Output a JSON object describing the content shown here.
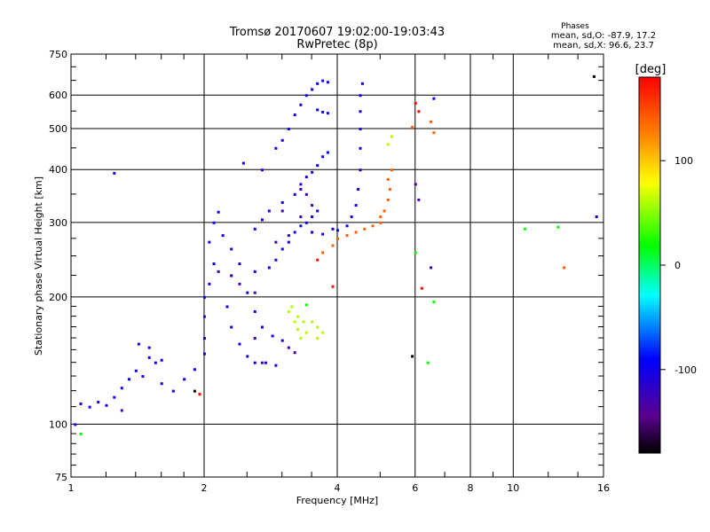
{
  "chart_data": {
    "type": "scatter",
    "title": "Tromsø 20170607 19:02:00-19:03:43",
    "subtitle": "RwPretec (8p)",
    "xlabel": "Frequency [MHz]",
    "ylabel": "Stationary phase Virtual Height [km]",
    "x_scale": "log",
    "y_scale": "log",
    "xlim": [
      1,
      16
    ],
    "ylim": [
      75,
      750
    ],
    "x_ticks": [
      1,
      2,
      4,
      6,
      8,
      10,
      16
    ],
    "x_tick_labels": [
      "1",
      "2",
      "4",
      "6",
      "8",
      "10",
      "16"
    ],
    "y_ticks": [
      75,
      100,
      200,
      300,
      400,
      500,
      600,
      750
    ],
    "y_tick_labels": [
      "75",
      "100",
      "200",
      "300",
      "400",
      "500",
      "600",
      "750"
    ],
    "grid": true,
    "stats": {
      "heading": "Phases",
      "line1": "mean, sd,O: -87.9, 17.2",
      "line2": "mean, sd,X:  96.6, 23.7"
    },
    "colorbar": {
      "label": "[deg]",
      "range": [
        -180,
        180
      ],
      "ticks": [
        100,
        0,
        -100
      ],
      "tick_labels": [
        "100",
        "0",
        "-100"
      ],
      "colormap": "rainbow"
    },
    "series": [
      {
        "color_phase": -100,
        "points": [
          [
            1.02,
            100
          ],
          [
            1.05,
            112
          ],
          [
            1.1,
            110
          ],
          [
            1.15,
            113
          ],
          [
            1.2,
            111
          ],
          [
            1.25,
            116
          ],
          [
            1.3,
            122
          ],
          [
            1.35,
            128
          ],
          [
            1.4,
            134
          ],
          [
            1.45,
            130
          ],
          [
            1.5,
            144
          ],
          [
            1.55,
            140
          ],
          [
            1.6,
            142
          ],
          [
            1.42,
            155
          ],
          [
            1.5,
            152
          ],
          [
            1.6,
            125
          ],
          [
            1.7,
            120
          ],
          [
            1.8,
            128
          ],
          [
            1.9,
            135
          ],
          [
            2.0,
            147
          ],
          [
            2.0,
            160
          ],
          [
            2.0,
            180
          ],
          [
            2.0,
            200
          ],
          [
            2.05,
            215
          ],
          [
            2.1,
            240
          ],
          [
            2.05,
            270
          ],
          [
            2.1,
            300
          ],
          [
            2.15,
            318
          ],
          [
            2.2,
            280
          ],
          [
            2.3,
            260
          ],
          [
            2.25,
            190
          ],
          [
            2.3,
            170
          ],
          [
            2.4,
            155
          ],
          [
            2.5,
            145
          ],
          [
            2.6,
            140
          ],
          [
            2.75,
            140
          ],
          [
            2.9,
            138
          ],
          [
            2.3,
            225
          ],
          [
            2.5,
            205
          ],
          [
            2.6,
            185
          ],
          [
            2.7,
            170
          ],
          [
            2.85,
            162
          ],
          [
            3.0,
            158
          ],
          [
            2.4,
            240
          ],
          [
            2.6,
            230
          ],
          [
            2.8,
            235
          ],
          [
            2.9,
            245
          ],
          [
            3.0,
            260
          ],
          [
            3.1,
            270
          ],
          [
            3.2,
            285
          ],
          [
            3.3,
            295
          ],
          [
            3.4,
            300
          ],
          [
            3.5,
            310
          ],
          [
            3.6,
            320
          ],
          [
            2.6,
            290
          ],
          [
            2.7,
            305
          ],
          [
            2.8,
            320
          ],
          [
            3.0,
            335
          ],
          [
            3.2,
            350
          ],
          [
            3.3,
            370
          ],
          [
            3.4,
            385
          ],
          [
            3.5,
            395
          ],
          [
            3.6,
            410
          ],
          [
            3.7,
            430
          ],
          [
            3.8,
            440
          ],
          [
            2.7,
            400
          ],
          [
            2.9,
            450
          ],
          [
            3.0,
            470
          ],
          [
            3.1,
            500
          ],
          [
            3.2,
            540
          ],
          [
            3.3,
            570
          ],
          [
            3.4,
            600
          ],
          [
            3.5,
            620
          ],
          [
            3.6,
            640
          ],
          [
            3.7,
            650
          ],
          [
            3.8,
            645
          ],
          [
            3.6,
            555
          ],
          [
            3.7,
            548
          ],
          [
            3.8,
            545
          ],
          [
            3.5,
            285
          ],
          [
            3.7,
            282
          ],
          [
            3.9,
            290
          ],
          [
            4.0,
            288
          ],
          [
            4.2,
            295
          ],
          [
            4.3,
            310
          ],
          [
            4.4,
            330
          ],
          [
            4.45,
            360
          ],
          [
            4.5,
            400
          ],
          [
            4.5,
            450
          ],
          [
            4.5,
            500
          ],
          [
            4.5,
            550
          ],
          [
            4.5,
            600
          ],
          [
            4.55,
            640
          ],
          [
            6.6,
            590
          ],
          [
            15.4,
            310
          ],
          [
            1.25,
            393
          ],
          [
            2.45,
            415
          ]
        ]
      },
      {
        "color_phase": -130,
        "points": [
          [
            2.15,
            230
          ],
          [
            2.4,
            215
          ],
          [
            2.6,
            205
          ],
          [
            2.9,
            270
          ],
          [
            3.1,
            280
          ],
          [
            3.3,
            310
          ],
          [
            3.5,
            330
          ],
          [
            3.4,
            350
          ],
          [
            3.3,
            360
          ],
          [
            3.0,
            320
          ],
          [
            2.7,
            140
          ],
          [
            3.1,
            152
          ],
          [
            3.2,
            148
          ],
          [
            1.3,
            108
          ],
          [
            2.6,
            160
          ],
          [
            6.5,
            235
          ],
          [
            6.0,
            370
          ],
          [
            6.1,
            340
          ],
          [
            2.3,
            225
          ]
        ]
      },
      {
        "color_phase": -180,
        "points": [
          [
            5.9,
            145
          ],
          [
            15.2,
            665
          ],
          [
            1.9,
            120
          ]
        ]
      },
      {
        "color_phase": 60,
        "points": [
          [
            3.1,
            185
          ],
          [
            3.2,
            175
          ],
          [
            3.25,
            168
          ],
          [
            3.3,
            160
          ],
          [
            3.35,
            175
          ],
          [
            3.4,
            165
          ],
          [
            3.5,
            175
          ],
          [
            3.6,
            170
          ],
          [
            3.7,
            165
          ],
          [
            3.6,
            160
          ],
          [
            3.15,
            190
          ],
          [
            3.25,
            180
          ],
          [
            5.2,
            460
          ],
          [
            5.3,
            480
          ]
        ]
      },
      {
        "color_phase": 140,
        "points": [
          [
            3.7,
            255
          ],
          [
            3.9,
            265
          ],
          [
            4.0,
            275
          ],
          [
            4.2,
            280
          ],
          [
            4.4,
            285
          ],
          [
            4.6,
            290
          ],
          [
            4.8,
            295
          ],
          [
            5.0,
            300
          ],
          [
            5.1,
            320
          ],
          [
            5.2,
            340
          ],
          [
            5.25,
            360
          ],
          [
            5.2,
            380
          ],
          [
            5.3,
            400
          ],
          [
            5.0,
            310
          ],
          [
            6.5,
            520
          ],
          [
            6.6,
            490
          ],
          [
            13.0,
            235
          ],
          [
            5.9,
            505
          ]
        ]
      },
      {
        "color_phase": 175,
        "points": [
          [
            6.0,
            575
          ],
          [
            6.1,
            550
          ],
          [
            6.2,
            210
          ],
          [
            3.9,
            212
          ],
          [
            3.6,
            245
          ],
          [
            1.95,
            118
          ]
        ]
      },
      {
        "color_phase": 20,
        "points": [
          [
            6.0,
            255
          ],
          [
            6.4,
            140
          ],
          [
            6.6,
            195
          ],
          [
            1.05,
            95
          ],
          [
            3.4,
            192
          ],
          [
            10.6,
            290
          ],
          [
            12.6,
            293
          ]
        ]
      }
    ]
  }
}
